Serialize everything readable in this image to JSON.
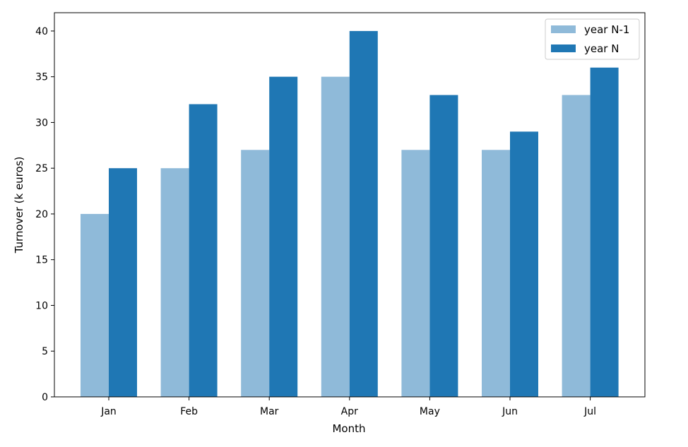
{
  "chart_data": {
    "type": "bar",
    "title": "",
    "xlabel": "Month",
    "ylabel": "Turnover (k euros)",
    "categories": [
      "Jan",
      "Feb",
      "Mar",
      "Apr",
      "May",
      "Jun",
      "Jul"
    ],
    "ylim": [
      0,
      42
    ],
    "yticks": [
      0,
      5,
      10,
      15,
      20,
      25,
      30,
      35,
      40
    ],
    "grid": false,
    "legend_position": "top-right",
    "series": [
      {
        "name": "year N-1",
        "color": "#8fbad9",
        "values": [
          20,
          25,
          27,
          35,
          27,
          27,
          33
        ]
      },
      {
        "name": "year N",
        "color": "#1f77b4",
        "values": [
          25,
          32,
          35,
          40,
          33,
          29,
          36
        ]
      }
    ]
  }
}
